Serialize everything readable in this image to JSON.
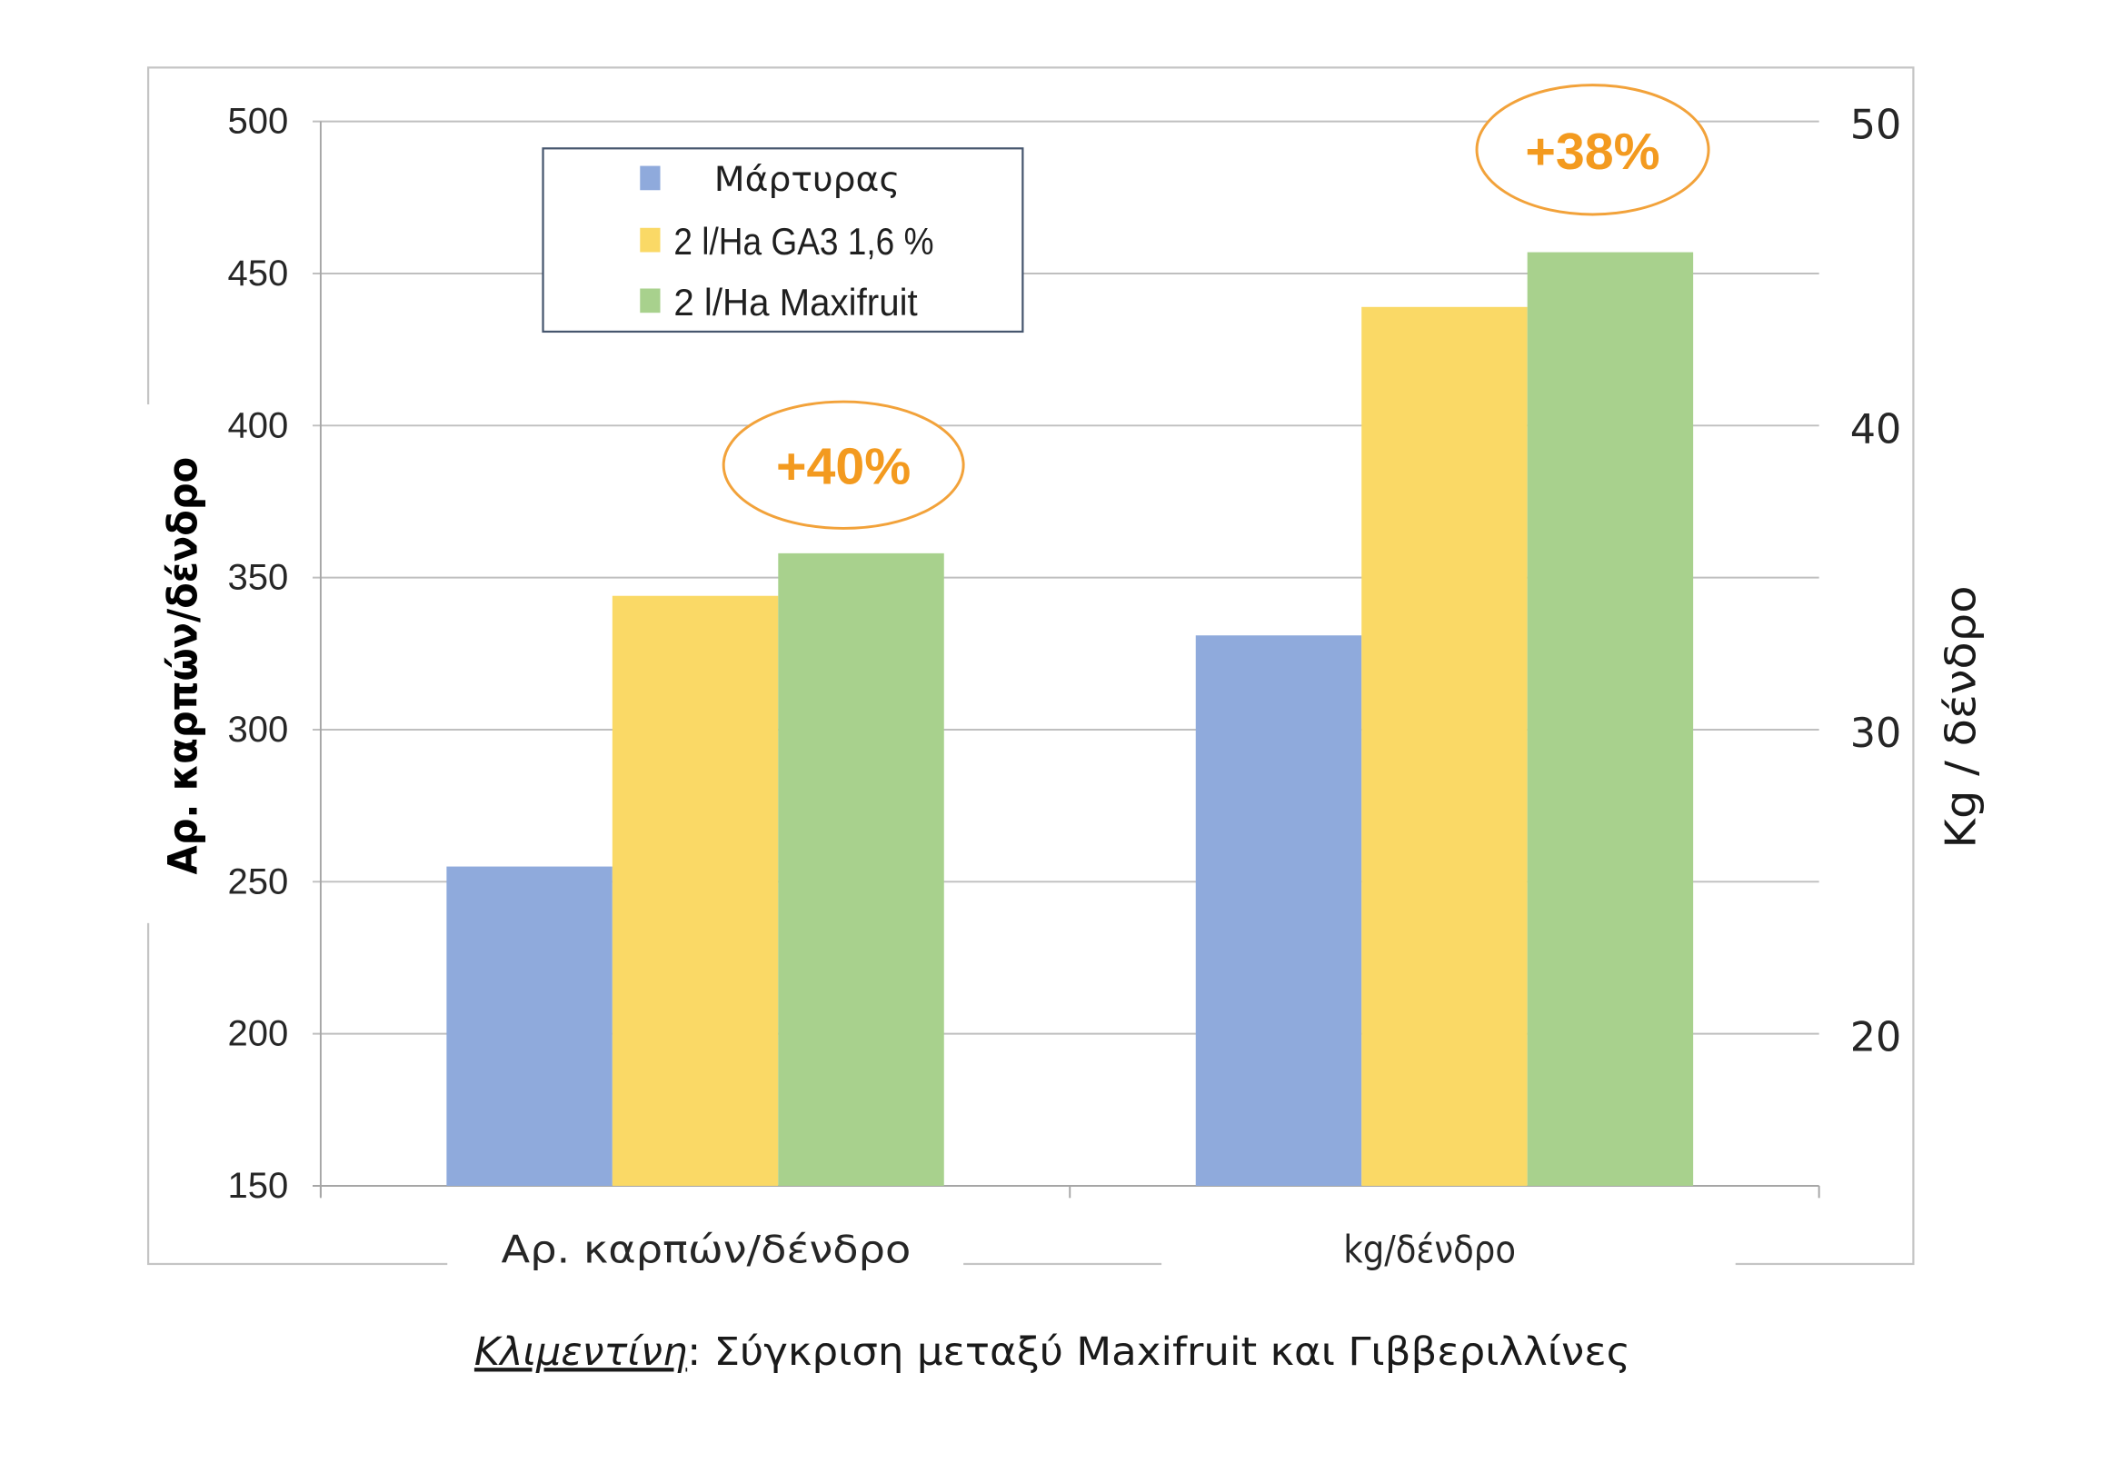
{
  "chart_data": {
    "type": "bar",
    "categories": [
      "Αρ. καρπών/δένδρο",
      "kg/δένδρο"
    ],
    "category_axis": [
      0,
      1
    ],
    "series": [
      {
        "name": "Μάρτυρας",
        "values": [
          255,
          33.1
        ],
        "color": "#8faadc"
      },
      {
        "name": "2 l/Ha GA3 1,6 %",
        "values": [
          344,
          43.9
        ],
        "color": "#fad966"
      },
      {
        "name": "2 l/Ha Maxifruit",
        "values": [
          358,
          45.7
        ],
        "color": "#a8d18d"
      }
    ],
    "y_axes": [
      {
        "position": "left",
        "label": "Αρ. καρπών/δένδρο",
        "ylim": [
          150,
          500
        ],
        "ticks": [
          150,
          200,
          250,
          300,
          350,
          400,
          450,
          500
        ]
      },
      {
        "position": "right",
        "label": "Kg / δένδρο",
        "ylim": [
          15,
          50
        ],
        "ticks": [
          20,
          30,
          40,
          50
        ]
      }
    ],
    "annotations": [
      {
        "category": 0,
        "text": "+40%"
      },
      {
        "category": 1,
        "text": "+38%"
      }
    ],
    "legend": "top-left",
    "grid": true,
    "colors": {
      "grid": "#bfbfbf",
      "axis": "#a6a6a6",
      "annotation": "#f39a1f",
      "annotation_outline": "#f2a23a"
    }
  },
  "caption": {
    "emphasis": "Κλιμεντίνη",
    "rest": ": Σύγκριση μεταξύ Maxifruit και Γιββεριλλίνες"
  }
}
